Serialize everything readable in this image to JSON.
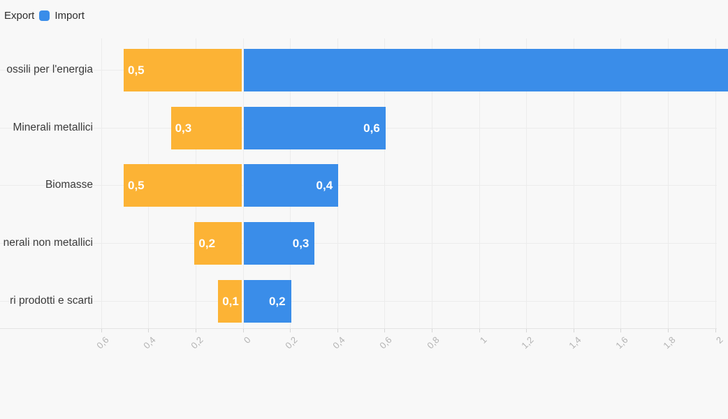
{
  "legend": {
    "position": "top-left",
    "items": [
      {
        "label": "Export",
        "color": "#fcb335",
        "swatch_visible": false
      },
      {
        "label": "Import",
        "color": "#3a8de9",
        "swatch_visible": true
      }
    ]
  },
  "colors": {
    "background": "#f8f8f8",
    "export_bar": "#fcb335",
    "import_bar": "#3a8de9",
    "gridline": "#ececec",
    "axis_line": "#e4e4e4",
    "tick_label": "#b3b3b3",
    "category_label": "#3b3b3b",
    "value_label": "#ffffff"
  },
  "chart_data": {
    "type": "bar",
    "orientation": "horizontal-diverging",
    "title": "",
    "xlabel": "",
    "ylabel": "",
    "grid": true,
    "legend_position": "top-left",
    "categories": [
      "ossili per l'energia",
      "Minerali metallici",
      "Biomasse",
      "nerali non metallici",
      "ri prodotti e scarti"
    ],
    "categories_truncated_by_crop": true,
    "series": [
      {
        "name": "Export",
        "color": "#fcb335",
        "direction": "left",
        "values": [
          0.5,
          0.3,
          0.5,
          0.2,
          0.1
        ],
        "labels": [
          "0,5",
          "0,3",
          "0,5",
          "0,2",
          "0,1"
        ]
      },
      {
        "name": "Import",
        "color": "#3a8de9",
        "direction": "right",
        "values": [
          2.05,
          0.6,
          0.4,
          0.3,
          0.2
        ],
        "labels": [
          "",
          "0,6",
          "0,4",
          "0,3",
          "0,2"
        ],
        "clipped_at_right_edge": [
          true,
          false,
          false,
          false,
          false
        ]
      }
    ],
    "x_ticks": {
      "values": [
        -0.6,
        -0.4,
        -0.2,
        0,
        0.2,
        0.4,
        0.6,
        0.8,
        1,
        1.2,
        1.4,
        1.6,
        1.8,
        2
      ],
      "labels": [
        "0,6",
        "0,4",
        "0,2",
        "0",
        "0,2",
        "0,4",
        "0,6",
        "0,8",
        "1",
        "1,2",
        "1,4",
        "1,6",
        "1,8",
        "2"
      ]
    },
    "xlim": [
      -0.66,
      2.01
    ],
    "decimal_separator": ","
  }
}
